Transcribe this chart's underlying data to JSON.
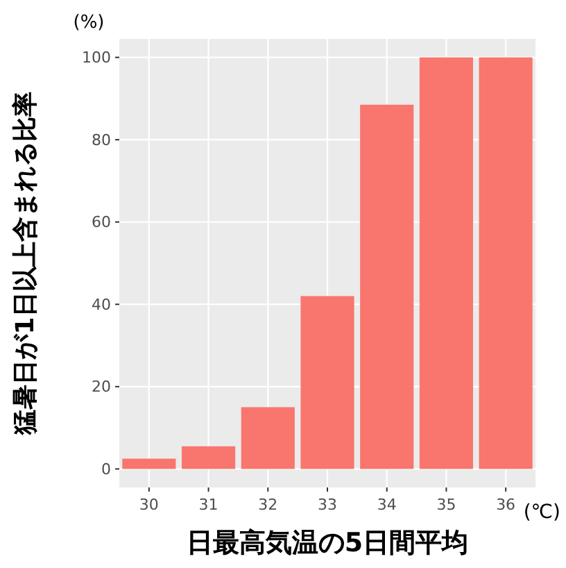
{
  "chart_data": {
    "type": "bar",
    "xlabel": "日最高気温の5日間平均",
    "ylabel": "猛暑日が1日以上含まれる比率",
    "annotations": [
      "(%)",
      "(℃)"
    ],
    "categories": [
      "30",
      "31",
      "32",
      "33",
      "34",
      "35",
      "36"
    ],
    "values": [
      2.5,
      5.5,
      15,
      42,
      88.5,
      100,
      100
    ],
    "color": "#f8766d",
    "ylim": [
      -4.5,
      104.5
    ],
    "yticks": [
      0,
      20,
      40,
      60,
      80,
      100
    ],
    "grid": true
  }
}
